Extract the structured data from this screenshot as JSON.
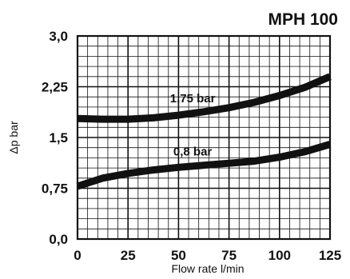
{
  "chart_data": {
    "type": "line",
    "title": "MPH 100",
    "xlabel": "Flow rate l/min",
    "ylabel": "Δp bar",
    "xlim": [
      0,
      125
    ],
    "ylim": [
      0,
      3.0
    ],
    "x_ticks": [
      "0",
      "25",
      "50",
      "75",
      "100",
      "125"
    ],
    "y_ticks": [
      "0,0",
      "0,75",
      "1,5",
      "2,25",
      "3,0"
    ],
    "grid": true,
    "series": [
      {
        "name": "1,75 bar",
        "x": [
          0,
          12.5,
          25,
          37.5,
          50,
          62.5,
          75,
          87.5,
          100,
          112.5,
          125
        ],
        "y": [
          1.78,
          1.77,
          1.77,
          1.79,
          1.83,
          1.88,
          1.94,
          2.02,
          2.12,
          2.24,
          2.4
        ]
      },
      {
        "name": "0,8 bar",
        "x": [
          0,
          12.5,
          25,
          37.5,
          50,
          62.5,
          75,
          87.5,
          100,
          112.5,
          125
        ],
        "y": [
          0.78,
          0.9,
          0.97,
          1.02,
          1.06,
          1.09,
          1.12,
          1.15,
          1.21,
          1.29,
          1.4
        ]
      }
    ],
    "colors": {
      "lines": "#111111",
      "grid": "#111111",
      "background": "#ffffff"
    }
  }
}
